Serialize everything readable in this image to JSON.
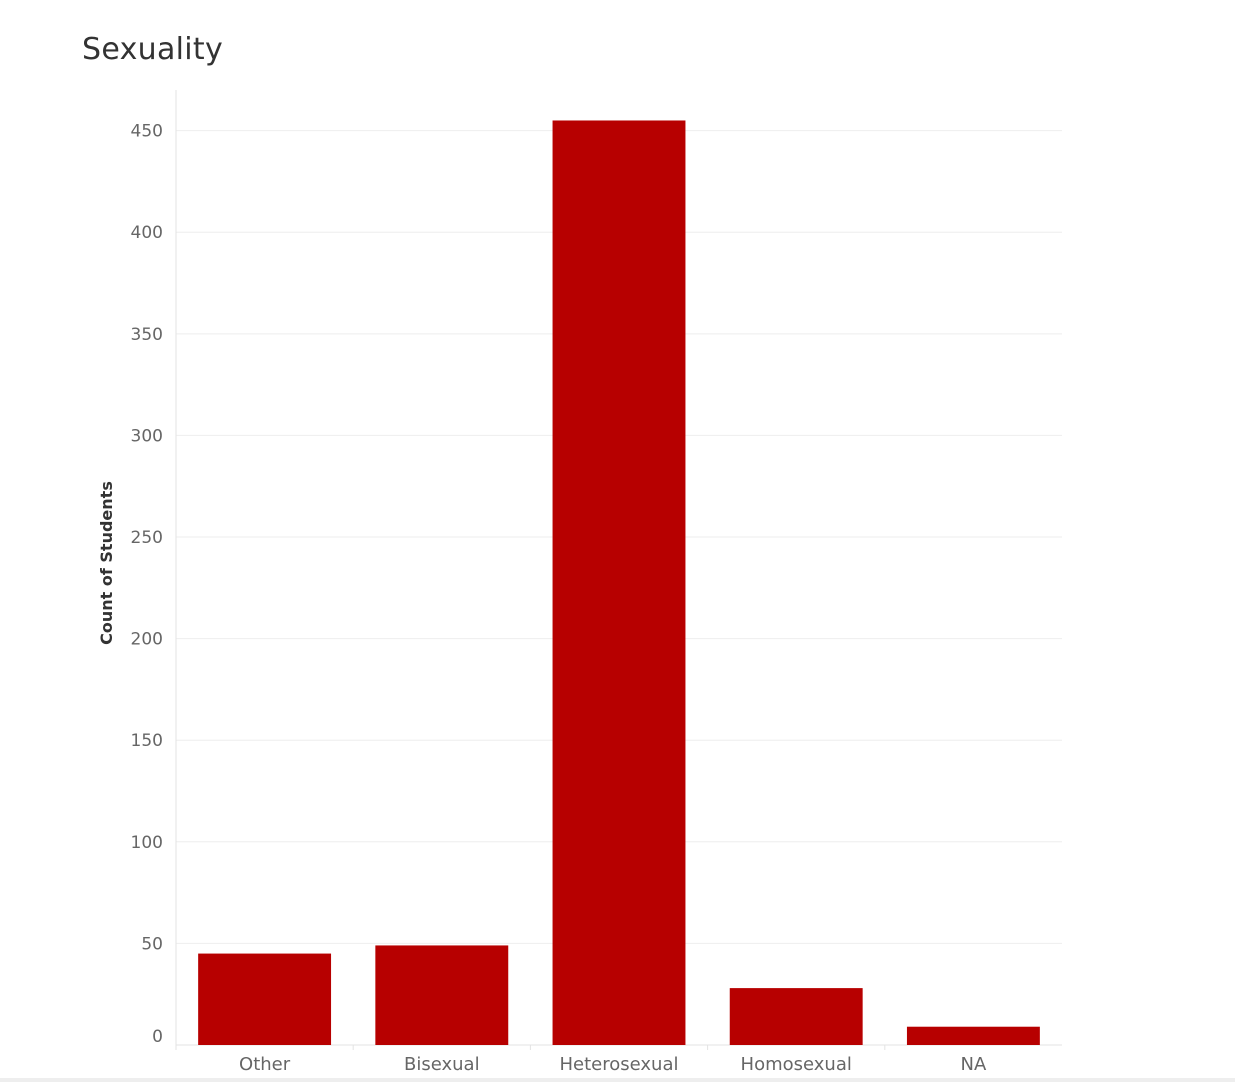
{
  "chart_data": {
    "type": "bar",
    "title": "Sexuality",
    "xlabel": "",
    "ylabel": "Count of Students",
    "categories": [
      "Other",
      "Bisexual",
      "Heterosexual",
      "Homosexual",
      "NA"
    ],
    "values": [
      45,
      49,
      455,
      28,
      9
    ],
    "ylim": [
      0,
      470
    ],
    "yticks": [
      0,
      50,
      100,
      150,
      200,
      250,
      300,
      350,
      400,
      450
    ],
    "grid": true,
    "bar_color": "#b70000",
    "grid_color": "#eeeeee",
    "axis_color": "#e3e3e3"
  }
}
